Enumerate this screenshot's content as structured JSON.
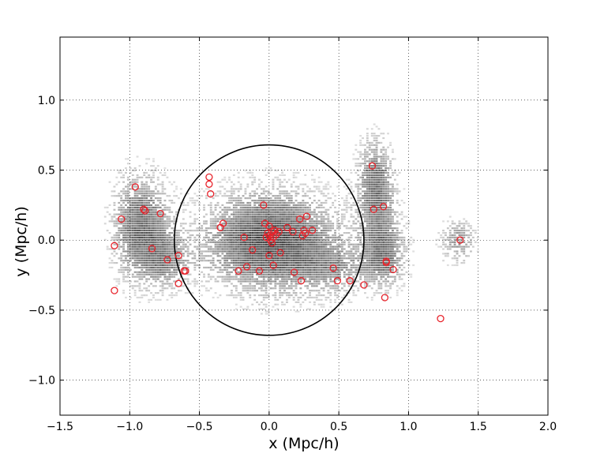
{
  "chart_data": {
    "type": "scatter",
    "xlabel": "x (Mpc/h)",
    "ylabel": "y (Mpc/h)",
    "xlim": [
      -1.5,
      2.0
    ],
    "ylim": [
      -1.25,
      1.45
    ],
    "grid": true,
    "grid_style": "dotted",
    "x_ticks": [
      -1.5,
      -1.0,
      -0.5,
      0.0,
      0.5,
      1.0,
      1.5,
      2.0
    ],
    "x_tick_labels": [
      "−1.5",
      "−1.0",
      "−0.5",
      "0.0",
      "0.5",
      "1.0",
      "1.5",
      "2.0"
    ],
    "y_ticks": [
      -1.0,
      -0.5,
      0.0,
      0.5,
      1.0
    ],
    "y_tick_labels": [
      "−1.0",
      "−0.5",
      "0.0",
      "0.5",
      "1.0"
    ],
    "circle": {
      "center": [
        0.0,
        0.0
      ],
      "radius": 0.68,
      "color": "#000000"
    },
    "density_blobs": [
      {
        "x": 0.0,
        "y": 0.0,
        "sx": 0.3,
        "sy": 0.22,
        "w": 1.0
      },
      {
        "x": -0.87,
        "y": 0.1,
        "sx": 0.12,
        "sy": 0.22,
        "w": 0.55
      },
      {
        "x": -0.75,
        "y": -0.15,
        "sx": 0.12,
        "sy": 0.12,
        "w": 0.45
      },
      {
        "x": -1.0,
        "y": 0.1,
        "sx": 0.1,
        "sy": 0.25,
        "w": 0.35
      },
      {
        "x": 0.75,
        "y": 0.45,
        "sx": 0.08,
        "sy": 0.18,
        "w": 0.6
      },
      {
        "x": 0.82,
        "y": -0.12,
        "sx": 0.1,
        "sy": 0.14,
        "w": 0.55
      },
      {
        "x": 0.78,
        "y": 0.15,
        "sx": 0.1,
        "sy": 0.2,
        "w": 0.4
      },
      {
        "x": 1.35,
        "y": 0.0,
        "sx": 0.08,
        "sy": 0.1,
        "w": 0.45
      },
      {
        "x": 0.45,
        "y": -0.2,
        "sx": 0.18,
        "sy": 0.12,
        "w": 0.35
      }
    ],
    "points": [
      {
        "x": -0.96,
        "y": 0.38
      },
      {
        "x": -0.9,
        "y": 0.22
      },
      {
        "x": -0.89,
        "y": 0.21
      },
      {
        "x": -1.06,
        "y": 0.15
      },
      {
        "x": -0.78,
        "y": 0.19
      },
      {
        "x": -1.11,
        "y": -0.04
      },
      {
        "x": -0.84,
        "y": -0.06
      },
      {
        "x": -0.73,
        "y": -0.14
      },
      {
        "x": -0.65,
        "y": -0.11
      },
      {
        "x": -0.6,
        "y": -0.22
      },
      {
        "x": -0.61,
        "y": -0.22
      },
      {
        "x": -0.65,
        "y": -0.31
      },
      {
        "x": -1.11,
        "y": -0.36
      },
      {
        "x": -0.43,
        "y": 0.45
      },
      {
        "x": -0.43,
        "y": 0.4
      },
      {
        "x": -0.42,
        "y": 0.33
      },
      {
        "x": -0.33,
        "y": 0.12
      },
      {
        "x": -0.35,
        "y": 0.09
      },
      {
        "x": -0.04,
        "y": 0.25
      },
      {
        "x": -0.18,
        "y": 0.02
      },
      {
        "x": -0.12,
        "y": -0.07
      },
      {
        "x": -0.16,
        "y": -0.19
      },
      {
        "x": -0.22,
        "y": -0.22
      },
      {
        "x": -0.07,
        "y": -0.22
      },
      {
        "x": 0.03,
        "y": -0.18
      },
      {
        "x": 0.0,
        "y": -0.11
      },
      {
        "x": 0.08,
        "y": -0.09
      },
      {
        "x": -0.03,
        "y": 0.12
      },
      {
        "x": 0.0,
        "y": 0.1
      },
      {
        "x": 0.02,
        "y": 0.06
      },
      {
        "x": 0.0,
        "y": 0.03
      },
      {
        "x": 0.01,
        "y": 0.0
      },
      {
        "x": 0.03,
        "y": 0.02
      },
      {
        "x": -0.02,
        "y": 0.02
      },
      {
        "x": 0.05,
        "y": 0.04
      },
      {
        "x": 0.07,
        "y": 0.06
      },
      {
        "x": 0.02,
        "y": -0.02
      },
      {
        "x": -0.01,
        "y": 0.05
      },
      {
        "x": 0.04,
        "y": 0.07
      },
      {
        "x": 0.13,
        "y": 0.09
      },
      {
        "x": 0.17,
        "y": 0.06
      },
      {
        "x": 0.22,
        "y": 0.15
      },
      {
        "x": 0.27,
        "y": 0.17
      },
      {
        "x": 0.25,
        "y": 0.07
      },
      {
        "x": 0.24,
        "y": 0.03
      },
      {
        "x": 0.26,
        "y": 0.05
      },
      {
        "x": 0.31,
        "y": 0.07
      },
      {
        "x": 0.18,
        "y": -0.23
      },
      {
        "x": 0.23,
        "y": -0.29
      },
      {
        "x": 0.46,
        "y": -0.2
      },
      {
        "x": 0.49,
        "y": -0.29
      },
      {
        "x": 0.58,
        "y": -0.29
      },
      {
        "x": 0.68,
        "y": -0.32
      },
      {
        "x": 0.74,
        "y": 0.53
      },
      {
        "x": 0.75,
        "y": 0.22
      },
      {
        "x": 0.82,
        "y": 0.24
      },
      {
        "x": 0.84,
        "y": -0.15
      },
      {
        "x": 0.84,
        "y": -0.16
      },
      {
        "x": 0.89,
        "y": -0.21
      },
      {
        "x": 0.83,
        "y": -0.41
      },
      {
        "x": 1.37,
        "y": 0.0
      },
      {
        "x": 1.23,
        "y": -0.56
      }
    ],
    "marker_color": "#e8232b"
  }
}
